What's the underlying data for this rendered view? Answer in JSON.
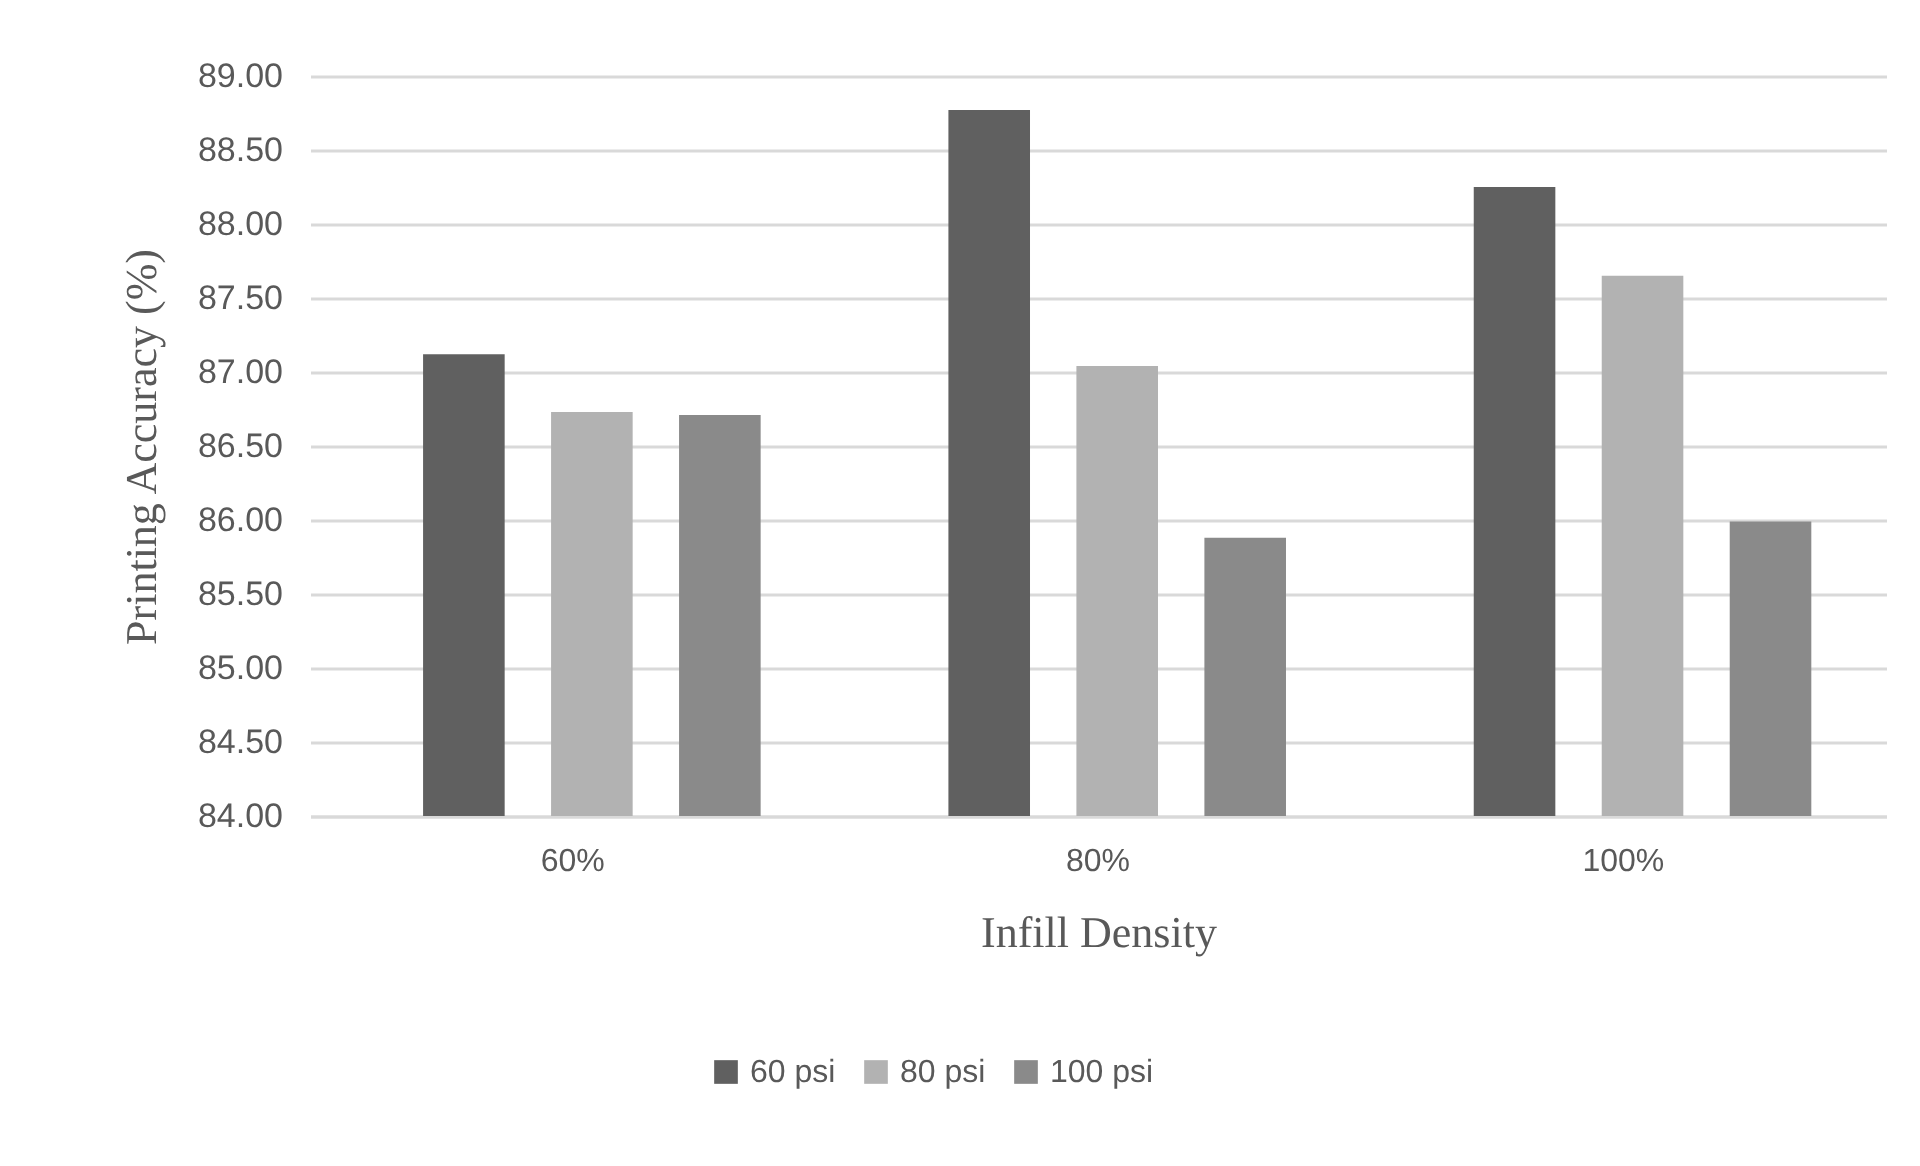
{
  "chart_data": {
    "type": "bar",
    "xlabel": "Infill Density",
    "ylabel": "Printing Accuracy (%)",
    "categories": [
      "60%",
      "80%",
      "100%"
    ],
    "series": [
      {
        "name": "60 psi",
        "color": "#606060",
        "values": [
          87.12,
          88.77,
          88.25
        ]
      },
      {
        "name": "80 psi",
        "color": "#b2b2b2",
        "values": [
          86.73,
          87.04,
          87.65
        ]
      },
      {
        "name": "100 psi",
        "color": "#8a8a8a",
        "values": [
          86.71,
          85.88,
          85.99
        ]
      }
    ],
    "ylim": [
      84,
      89
    ],
    "yticks": [
      {
        "value": 84,
        "label": "84.00"
      },
      {
        "value": 84.5,
        "label": "84.50"
      },
      {
        "value": 85,
        "label": "85.00"
      },
      {
        "value": 85.5,
        "label": "85.50"
      },
      {
        "value": 86,
        "label": "86.00"
      },
      {
        "value": 86.5,
        "label": "86.50"
      },
      {
        "value": 87,
        "label": "87.00"
      },
      {
        "value": 87.5,
        "label": "87.50"
      },
      {
        "value": 88,
        "label": "88.00"
      },
      {
        "value": 88.5,
        "label": "88.50"
      },
      {
        "value": 89,
        "label": "89.00"
      }
    ],
    "grid": "y",
    "legend": "bottom"
  }
}
